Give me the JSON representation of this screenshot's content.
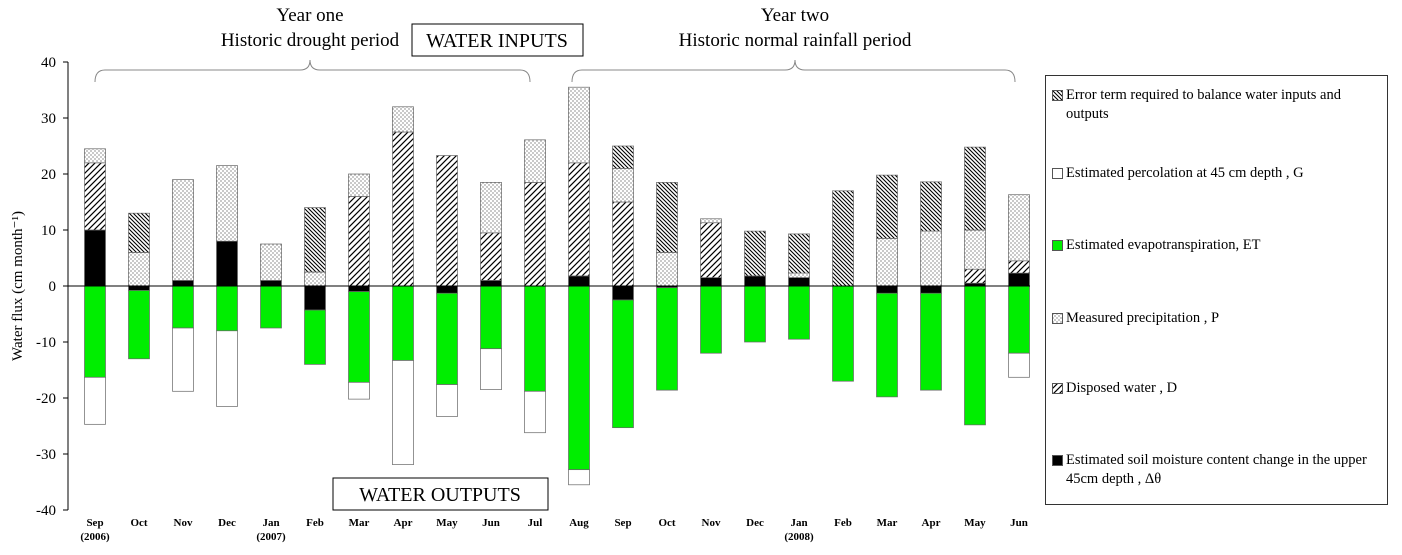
{
  "chart_data": {
    "type": "bar",
    "stacked": true,
    "y_label": "Water flux (cm month⁻¹)",
    "annotations": [
      "Year one",
      "Historic drought period",
      "WATER INPUTS",
      "Year two",
      "Historic normal rainfall period",
      "WATER OUTPUTS"
    ],
    "categories": [
      "Sep",
      "Oct",
      "Nov",
      "Dec",
      "Jan",
      "Feb",
      "Mar",
      "Apr",
      "May",
      "Jun",
      "Jul",
      "Aug",
      "Sep",
      "Oct",
      "Nov",
      "Dec",
      "Jan",
      "Feb",
      "Mar",
      "Apr",
      "May",
      "Jun"
    ],
    "category_sublabels": [
      "(2006)",
      null,
      null,
      null,
      "(2007)",
      null,
      null,
      null,
      null,
      null,
      null,
      null,
      null,
      null,
      null,
      null,
      "(2008)",
      null,
      null,
      null,
      null,
      null
    ],
    "ylim": [
      -40,
      40
    ],
    "yticks": [
      -40,
      -30,
      -20,
      -10,
      0,
      10,
      20,
      30,
      40
    ],
    "series": [
      {
        "name": "Error term required to balance water inputs and outputs",
        "color": "#ffffff",
        "pattern": "crosshatch",
        "values": [
          0,
          7,
          0,
          0,
          0,
          11.5,
          0,
          0,
          0,
          0,
          0,
          0,
          4,
          12.5,
          0,
          8,
          7,
          17,
          11.3,
          8.8,
          14.8,
          0
        ]
      },
      {
        "name": "Estimated percolation at 45 cm depth , G",
        "color": "#ffffff",
        "pattern": "none",
        "values": [
          -8.4,
          0,
          -11.3,
          -13.5,
          0,
          0,
          -3,
          -18.6,
          -5.7,
          -7.3,
          -7.4,
          -2.7,
          0,
          0,
          0,
          0,
          0,
          0,
          0,
          0,
          0,
          -4.3
        ]
      },
      {
        "name": "Estimated evapotranspiration, ET",
        "color": "#00ee00",
        "pattern": "none",
        "values": [
          -16.3,
          -12.2,
          -7.5,
          -8,
          -7.5,
          -9.7,
          -16.2,
          -13.3,
          -16.3,
          -11.2,
          -18.8,
          -32.8,
          -22.8,
          -18.3,
          -12,
          -10,
          -9.5,
          -17,
          -18.5,
          -17.3,
          -24.8,
          -12
        ]
      },
      {
        "name": "Measured precipitation , P",
        "color": "#ffffff",
        "pattern": "dots",
        "values": [
          2.5,
          6,
          18,
          13.5,
          6.5,
          2.5,
          4,
          4.5,
          0,
          9,
          7.6,
          13.5,
          6,
          6,
          0.7,
          0,
          0.8,
          0,
          8.5,
          9.8,
          7,
          11.8
        ]
      },
      {
        "name": "Disposed water , D",
        "color": "#ffffff",
        "pattern": "hatch",
        "values": [
          12,
          0,
          0,
          0,
          0,
          0,
          16,
          27.5,
          23.3,
          8.5,
          18.5,
          20.2,
          15,
          0,
          9.8,
          0,
          0,
          0,
          0,
          0,
          2.5,
          2.2
        ]
      },
      {
        "name": "Estimated soil moisture content change in the upper 45cm depth , Δθ",
        "color": "#000000",
        "pattern": "none",
        "values": [
          10,
          -0.8,
          1,
          8,
          1,
          -4.3,
          -1,
          0,
          -1.3,
          1,
          0,
          1.8,
          -2.5,
          -0.3,
          1.5,
          1.8,
          1.5,
          0,
          -1.3,
          -1.3,
          0.5,
          2.3
        ]
      }
    ]
  }
}
